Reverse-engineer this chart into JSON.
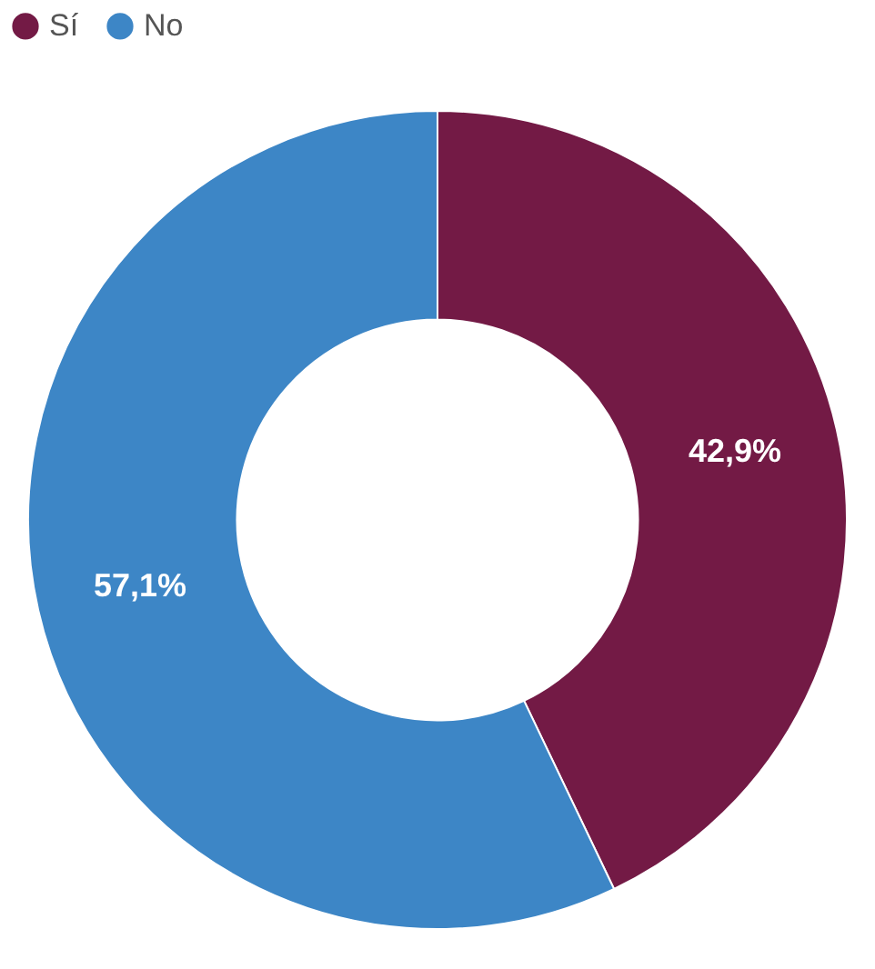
{
  "chart_data": {
    "type": "donut",
    "categories": [
      "Sí",
      "No"
    ],
    "values": [
      42.9,
      57.1
    ],
    "colors": [
      "#731a45",
      "#3d86c6"
    ],
    "value_labels": [
      "42,9%",
      "57,1%"
    ],
    "legend": "top"
  }
}
